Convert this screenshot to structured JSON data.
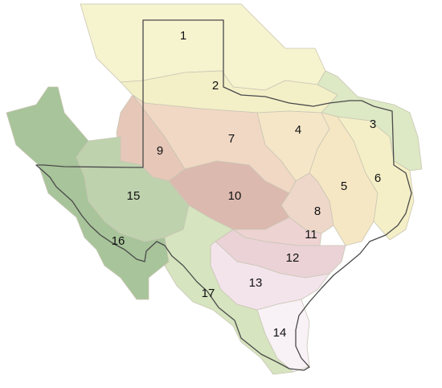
{
  "map": {
    "regions": [
      {
        "label": "1",
        "color": "#f6f3cf"
      },
      {
        "label": "2",
        "color": "#f3efc7"
      },
      {
        "label": "3",
        "color": "#dde8c4"
      },
      {
        "label": "4",
        "color": "#f5e6c7"
      },
      {
        "label": "5",
        "color": "#f6e7c4"
      },
      {
        "label": "6",
        "color": "#f4efc6"
      },
      {
        "label": "7",
        "color": "#f0d8c4"
      },
      {
        "label": "8",
        "color": "#eed7c9"
      },
      {
        "label": "9",
        "color": "#e6c7b8"
      },
      {
        "label": "10",
        "color": "#dcb9ae"
      },
      {
        "label": "11",
        "color": "#eed3d3"
      },
      {
        "label": "12",
        "color": "#ead2d6"
      },
      {
        "label": "13",
        "color": "#f3e4ec"
      },
      {
        "label": "14",
        "color": "#f8f1f6"
      },
      {
        "label": "15",
        "color": "#bed2ae"
      },
      {
        "label": "16",
        "color": "#a8c49a"
      },
      {
        "label": "17",
        "color": "#d6e4bf"
      }
    ]
  }
}
